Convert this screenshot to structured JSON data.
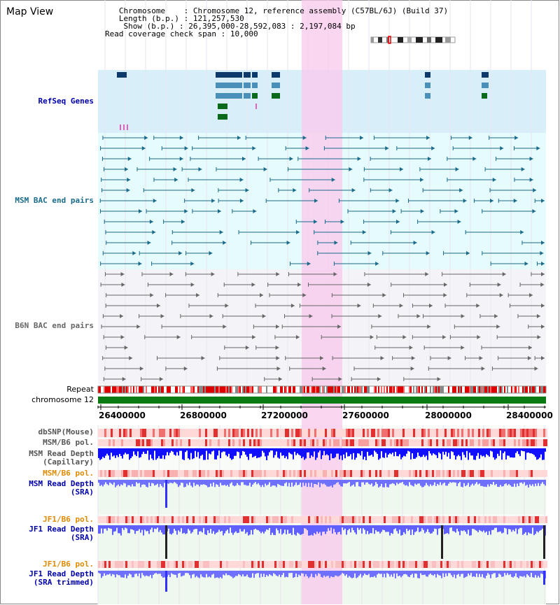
{
  "map_title": "Map View",
  "info": {
    "chromosome_key": "Chromosome",
    "chromosome_val": "Chromosome 12, reference assembly (C57BL/6J) (Build 37)",
    "length_key": "Length (b.p.)",
    "length_val": "121,257,530",
    "show_key": "Show (b.p.)",
    "show_val": "26,395,000-28,592,083 : 2,197,084 bp",
    "coverage_key": "Read coverage check span",
    "coverage_val": "10,000"
  },
  "tracks": {
    "refseq": "RefSeq Genes",
    "msm_bac": "MSM BAC end pairs",
    "b6n_bac": "B6N BAC end pairs",
    "repeat": "Repeat",
    "chromosome": "chromosome 12",
    "dbsnp": "dbSNP(Mouse)",
    "msm_b6_pol_1": "MSM/B6 pol.",
    "msm_depth_cap_1": "MSM Read Depth",
    "msm_depth_cap_2": "(Capillary)",
    "msm_b6_pol_2": "MSM/B6 pol.",
    "msm_depth_sra_1": "MSM Read Depth",
    "msm_depth_sra_2": "(SRA)",
    "jf1_b6_pol_1": "JF1/B6 pol.",
    "jf1_depth_sra_1": "JF1 Read Depth",
    "jf1_depth_sra_2": "(SRA)",
    "jf1_b6_pol_2": "JF1/B6 pol.",
    "jf1_depth_trim_1": "JF1 Read Depth",
    "jf1_depth_trim_2": "(SRA trimmed)"
  },
  "ruler_ticks": [
    "26400000",
    "26800000",
    "27200000",
    "27600000",
    "28000000",
    "28400000"
  ],
  "colors": {
    "refseq_bg": "#d8eef9",
    "msm_bg": "#e6fbfb",
    "b6n_bg": "#f4f4f8",
    "highlight": "#f9c8ec",
    "gene_dark": "#0d3a6a",
    "gene_mid": "#4a90b8",
    "gene_green": "#0a6a1a",
    "msm_pair": "#1a6a8a",
    "b6n_pair": "#666666",
    "chrom_bar": "#0a7a12",
    "depth_blue": "#4040ff",
    "depth_light": "#8080ff"
  }
}
